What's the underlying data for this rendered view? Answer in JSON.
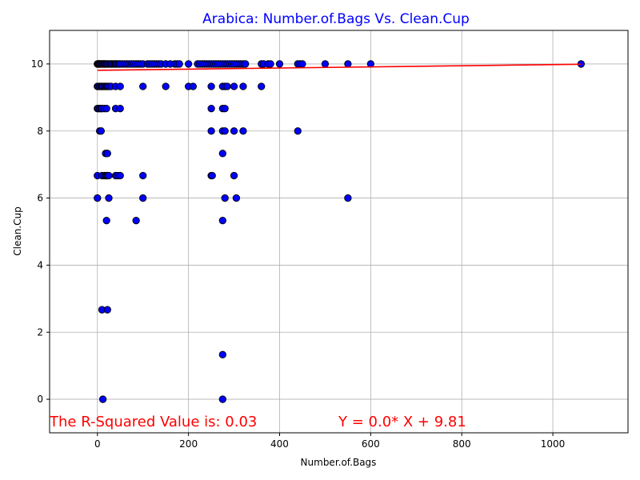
{
  "chart_data": {
    "type": "scatter",
    "title": "Arabica: Number.of.Bags Vs. Clean.Cup",
    "xlabel": "Number.of.Bags",
    "ylabel": "Clean.Cup",
    "xlim": [
      -105,
      1165
    ],
    "ylim": [
      -1,
      11
    ],
    "xticks": [
      0,
      200,
      400,
      600,
      800,
      1000
    ],
    "yticks": [
      0,
      2,
      4,
      6,
      8,
      10
    ],
    "grid": true,
    "colors": {
      "title": "#0000ff",
      "points": "#0000ff",
      "point_edge": "#000000",
      "regression": "#ff0000",
      "annotation": "#ff0000"
    },
    "annotations": {
      "r_squared": "The R-Squared Value is: 0.03",
      "equation": "Y = 0.0* X + 9.81"
    },
    "regression": {
      "slope": 0.00017,
      "intercept": 9.81,
      "x_range": [
        0,
        1062
      ]
    },
    "points": [
      [
        0,
        10
      ],
      [
        1,
        10
      ],
      [
        2,
        10
      ],
      [
        3,
        10
      ],
      [
        4,
        10
      ],
      [
        5,
        10
      ],
      [
        6,
        10
      ],
      [
        8,
        10
      ],
      [
        10,
        10
      ],
      [
        12,
        10
      ],
      [
        14,
        10
      ],
      [
        15,
        10
      ],
      [
        16,
        10
      ],
      [
        18,
        10
      ],
      [
        20,
        10
      ],
      [
        22,
        10
      ],
      [
        25,
        10
      ],
      [
        28,
        10
      ],
      [
        30,
        10
      ],
      [
        32,
        10
      ],
      [
        35,
        10
      ],
      [
        38,
        10
      ],
      [
        40,
        10
      ],
      [
        42,
        10
      ],
      [
        45,
        10
      ],
      [
        48,
        10
      ],
      [
        50,
        10
      ],
      [
        55,
        10
      ],
      [
        60,
        10
      ],
      [
        65,
        10
      ],
      [
        70,
        10
      ],
      [
        75,
        10
      ],
      [
        80,
        10
      ],
      [
        85,
        10
      ],
      [
        90,
        10
      ],
      [
        95,
        10
      ],
      [
        100,
        10
      ],
      [
        110,
        10
      ],
      [
        115,
        10
      ],
      [
        120,
        10
      ],
      [
        125,
        10
      ],
      [
        130,
        10
      ],
      [
        135,
        10
      ],
      [
        140,
        10
      ],
      [
        150,
        10
      ],
      [
        160,
        10
      ],
      [
        170,
        10
      ],
      [
        175,
        10
      ],
      [
        180,
        10
      ],
      [
        200,
        10
      ],
      [
        220,
        10
      ],
      [
        225,
        10
      ],
      [
        230,
        10
      ],
      [
        235,
        10
      ],
      [
        240,
        10
      ],
      [
        245,
        10
      ],
      [
        250,
        10
      ],
      [
        255,
        10
      ],
      [
        260,
        10
      ],
      [
        265,
        10
      ],
      [
        270,
        10
      ],
      [
        275,
        10
      ],
      [
        280,
        10
      ],
      [
        285,
        10
      ],
      [
        290,
        10
      ],
      [
        295,
        10
      ],
      [
        300,
        10
      ],
      [
        305,
        10
      ],
      [
        310,
        10
      ],
      [
        315,
        10
      ],
      [
        320,
        10
      ],
      [
        325,
        10
      ],
      [
        360,
        10
      ],
      [
        365,
        10
      ],
      [
        375,
        10
      ],
      [
        380,
        10
      ],
      [
        400,
        10
      ],
      [
        440,
        10
      ],
      [
        445,
        10
      ],
      [
        450,
        10
      ],
      [
        500,
        10
      ],
      [
        550,
        10
      ],
      [
        600,
        10
      ],
      [
        1062,
        10
      ],
      [
        0,
        9.33
      ],
      [
        2,
        9.33
      ],
      [
        5,
        9.33
      ],
      [
        8,
        9.33
      ],
      [
        10,
        9.33
      ],
      [
        12,
        9.33
      ],
      [
        15,
        9.33
      ],
      [
        18,
        9.33
      ],
      [
        20,
        9.33
      ],
      [
        22,
        9.33
      ],
      [
        25,
        9.33
      ],
      [
        30,
        9.33
      ],
      [
        40,
        9.33
      ],
      [
        50,
        9.33
      ],
      [
        100,
        9.33
      ],
      [
        150,
        9.33
      ],
      [
        200,
        9.33
      ],
      [
        210,
        9.33
      ],
      [
        250,
        9.33
      ],
      [
        275,
        9.33
      ],
      [
        280,
        9.33
      ],
      [
        285,
        9.33
      ],
      [
        300,
        9.33
      ],
      [
        320,
        9.33
      ],
      [
        360,
        9.33
      ],
      [
        0,
        8.67
      ],
      [
        2,
        8.67
      ],
      [
        5,
        8.67
      ],
      [
        8,
        8.67
      ],
      [
        10,
        8.67
      ],
      [
        15,
        8.67
      ],
      [
        20,
        8.67
      ],
      [
        40,
        8.67
      ],
      [
        50,
        8.67
      ],
      [
        250,
        8.67
      ],
      [
        275,
        8.67
      ],
      [
        280,
        8.67
      ],
      [
        5,
        8
      ],
      [
        8,
        8
      ],
      [
        250,
        8
      ],
      [
        275,
        8
      ],
      [
        280,
        8
      ],
      [
        300,
        8
      ],
      [
        320,
        8
      ],
      [
        440,
        8
      ],
      [
        18,
        7.33
      ],
      [
        22,
        7.33
      ],
      [
        275,
        7.33
      ],
      [
        0,
        6.67
      ],
      [
        10,
        6.67
      ],
      [
        15,
        6.67
      ],
      [
        18,
        6.67
      ],
      [
        20,
        6.67
      ],
      [
        22,
        6.67
      ],
      [
        25,
        6.67
      ],
      [
        40,
        6.67
      ],
      [
        45,
        6.67
      ],
      [
        50,
        6.67
      ],
      [
        100,
        6.67
      ],
      [
        250,
        6.67
      ],
      [
        252,
        6.67
      ],
      [
        300,
        6.67
      ],
      [
        0,
        6
      ],
      [
        25,
        6
      ],
      [
        100,
        6
      ],
      [
        280,
        6
      ],
      [
        305,
        6
      ],
      [
        550,
        6
      ],
      [
        20,
        5.33
      ],
      [
        85,
        5.33
      ],
      [
        275,
        5.33
      ],
      [
        10,
        2.67
      ],
      [
        22,
        2.67
      ],
      [
        275,
        1.33
      ],
      [
        12,
        0
      ],
      [
        275,
        0
      ]
    ]
  }
}
